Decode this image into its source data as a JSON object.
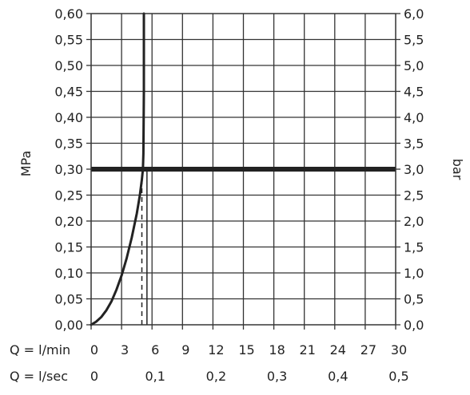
{
  "chart_data": {
    "type": "line",
    "left_axis": {
      "label": "MPa",
      "range": [
        0,
        0.6
      ],
      "ticks": [
        "0,00",
        "0,05",
        "0,10",
        "0,15",
        "0,20",
        "0,25",
        "0,30",
        "0,35",
        "0,40",
        "0,45",
        "0,50",
        "0,55",
        "0,60"
      ]
    },
    "right_axis": {
      "label": "bar",
      "range": [
        0,
        6
      ],
      "ticks": [
        "0,0",
        "0,5",
        "1,0",
        "1,5",
        "2,0",
        "2,5",
        "3,0",
        "3,5",
        "4,0",
        "4,5",
        "5,0",
        "5,5",
        "6,0"
      ]
    },
    "x_axis": {
      "range": [
        0,
        30
      ],
      "ticks": [
        "0",
        "3",
        "6",
        "9",
        "12",
        "15",
        "18",
        "21",
        "24",
        "27",
        "30"
      ]
    },
    "x2_axis": {
      "ticks": [
        "0",
        "0,1",
        "0,2",
        "0,3",
        "0,4",
        "0,5"
      ]
    },
    "row_labels": {
      "lmin": "Q = l/min",
      "lsec": "Q = l/sec"
    },
    "grid": true,
    "series": [
      {
        "x": [
          0,
          0.5,
          1.0,
          1.5,
          2.0,
          2.5,
          3.0,
          3.5,
          4.0,
          4.5,
          4.8,
          5.0,
          5.1,
          5.15,
          5.2,
          5.2
        ],
        "y": [
          0,
          0.006,
          0.015,
          0.028,
          0.045,
          0.068,
          0.095,
          0.128,
          0.168,
          0.215,
          0.25,
          0.28,
          0.3,
          0.33,
          0.45,
          0.6
        ],
        "color": "#222222"
      }
    ],
    "reference_line": {
      "y": 0.3,
      "color": "#222222"
    },
    "marker_line": {
      "x": 5.0,
      "y": [
        0,
        0.28
      ],
      "style": "dashed"
    },
    "vertical_line": {
      "x": 5.5,
      "y": [
        0,
        0.3
      ]
    }
  }
}
